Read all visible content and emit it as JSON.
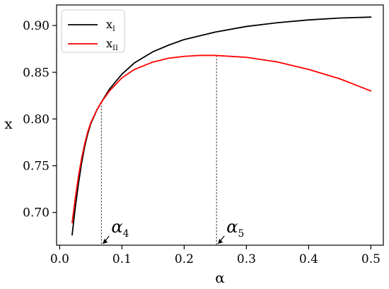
{
  "chart_data": {
    "type": "line",
    "xlabel": "α",
    "ylabel": "x",
    "xlim": [
      -0.005,
      0.52
    ],
    "ylim": [
      0.665,
      0.922
    ],
    "xticks": [
      {
        "value": 0.0,
        "label": "0.0"
      },
      {
        "value": 0.1,
        "label": "0.1"
      },
      {
        "value": 0.2,
        "label": "0.2"
      },
      {
        "value": 0.3,
        "label": "0.3"
      },
      {
        "value": 0.4,
        "label": "0.4"
      },
      {
        "value": 0.5,
        "label": "0.5"
      }
    ],
    "yticks": [
      {
        "value": 0.7,
        "label": "0.70"
      },
      {
        "value": 0.75,
        "label": "0.75"
      },
      {
        "value": 0.8,
        "label": "0.80"
      },
      {
        "value": 0.85,
        "label": "0.85"
      },
      {
        "value": 0.9,
        "label": "0.90"
      }
    ],
    "grid": false,
    "legend": "top-left",
    "series": [
      {
        "name": "x",
        "subscript": "I",
        "color": "#000000",
        "x": [
          0.02,
          0.025,
          0.03,
          0.035,
          0.04,
          0.045,
          0.05,
          0.06,
          0.067,
          0.08,
          0.1,
          0.12,
          0.15,
          0.175,
          0.2,
          0.25,
          0.3,
          0.35,
          0.4,
          0.45,
          0.5
        ],
        "y": [
          0.676,
          0.705,
          0.73,
          0.752,
          0.77,
          0.784,
          0.795,
          0.81,
          0.818,
          0.832,
          0.848,
          0.86,
          0.872,
          0.879,
          0.885,
          0.893,
          0.899,
          0.903,
          0.906,
          0.908,
          0.909
        ]
      },
      {
        "name": "x",
        "subscript": "II",
        "color": "#ff0000",
        "x": [
          0.02,
          0.025,
          0.03,
          0.035,
          0.04,
          0.045,
          0.05,
          0.06,
          0.067,
          0.08,
          0.1,
          0.12,
          0.15,
          0.175,
          0.2,
          0.225,
          0.25,
          0.3,
          0.35,
          0.4,
          0.45,
          0.5
        ],
        "y": [
          0.689,
          0.715,
          0.738,
          0.757,
          0.773,
          0.786,
          0.796,
          0.81,
          0.818,
          0.83,
          0.844,
          0.853,
          0.861,
          0.865,
          0.867,
          0.868,
          0.868,
          0.866,
          0.861,
          0.853,
          0.843,
          0.83
        ]
      }
    ],
    "annotations": [
      {
        "label": "α",
        "subscript": "4",
        "x": 0.067,
        "y_top": 0.818
      },
      {
        "label": "α",
        "subscript": "5",
        "x": 0.252,
        "y_top": 0.868
      }
    ]
  }
}
